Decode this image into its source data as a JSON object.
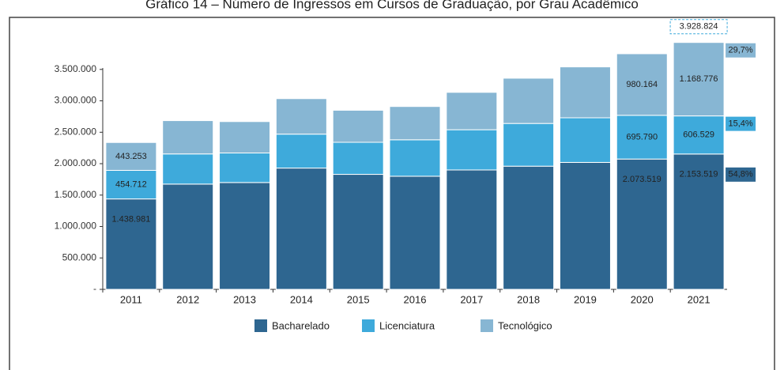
{
  "chart_data": {
    "type": "stacked_bar",
    "title": "Gráfico 14 – Número de Ingressos em Cursos de Graduação, por Grau Acadêmico",
    "categories": [
      "2011",
      "2012",
      "2013",
      "2014",
      "2015",
      "2016",
      "2017",
      "2018",
      "2019",
      "2020",
      "2021"
    ],
    "series": [
      {
        "name": "Bacharelado",
        "color": "#2e6690",
        "values": [
          1438981,
          1675000,
          1700000,
          1930000,
          1830000,
          1800000,
          1900000,
          1960000,
          2020000,
          2073519,
          2153519
        ],
        "value_labels": [
          "1.438.981",
          null,
          null,
          null,
          null,
          null,
          null,
          null,
          null,
          "2.073.519",
          "2.153.519"
        ],
        "share_label": "54,8%"
      },
      {
        "name": "Licenciatura",
        "color": "#3eaadb",
        "values": [
          454712,
          480000,
          470000,
          540000,
          510000,
          580000,
          640000,
          680000,
          710000,
          695790,
          606529
        ],
        "value_labels": [
          "454.712",
          null,
          null,
          null,
          null,
          null,
          null,
          null,
          null,
          "695.790",
          "606.529"
        ],
        "share_label": "15,4%"
      },
      {
        "name": "Tecnológico",
        "color": "#87b6d3",
        "values": [
          443253,
          530000,
          500000,
          565000,
          510000,
          530000,
          595000,
          720000,
          810000,
          980164,
          1168776
        ],
        "value_labels": [
          "443.253",
          null,
          null,
          null,
          null,
          null,
          null,
          null,
          null,
          "980.164",
          "1.168.776"
        ],
        "share_label": "29,7%"
      }
    ],
    "total_label": "3.928.824",
    "ylim": [
      0,
      3900000
    ],
    "yticks": [
      {
        "value": 0,
        "label": "-"
      },
      {
        "value": 500000,
        "label": "500.000"
      },
      {
        "value": 1000000,
        "label": "1.000.000"
      },
      {
        "value": 1500000,
        "label": "1.500.000"
      },
      {
        "value": 2000000,
        "label": "2.000.000"
      },
      {
        "value": 2500000,
        "label": "2.500.000"
      },
      {
        "value": 3000000,
        "label": "3.000.000"
      },
      {
        "value": 3500000,
        "label": "3.500.000"
      }
    ],
    "grid": false
  }
}
